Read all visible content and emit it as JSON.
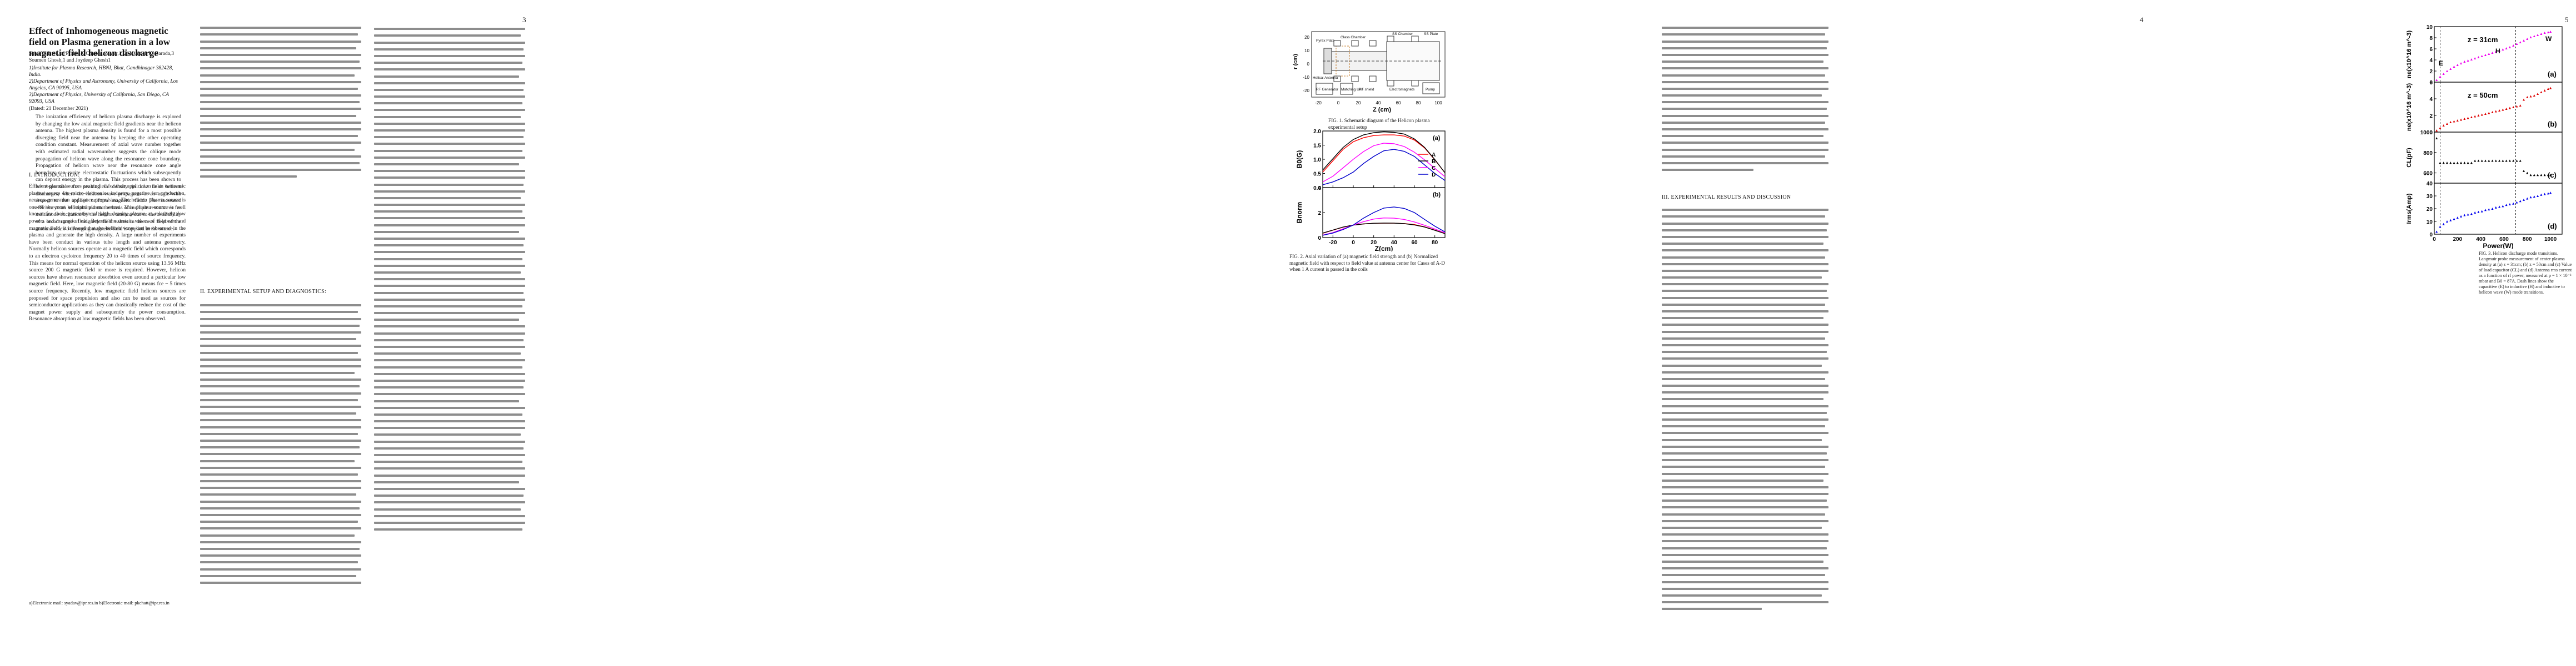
{
  "arxiv_id": "arXiv:1901.03015v1  [physics.plasm-ph]  10 Jan 2019",
  "pages": {
    "p1": {
      "title": "Effect of Inhomogeneous magnetic field on Plasma generation in a low magnetic field helicon discharge",
      "authors": "Sonu Yadav,1, a) Pralay K Chattopadhyay,1, 2) Kshitish K. Barada,3 Soumen Ghosh,1 and Joydeep Ghosh1",
      "aff1": "1)Institute for Plasma Research, HBNI, Bhat, Gandhinagar 382428, India.",
      "aff2": "2)Department of Physics and Astronomy, University of California, Los Angeles, CA 90095, USA",
      "aff3": "3)Department of Physics, University of California, San Diego, CA 92093, USA",
      "dated": "(Dated: 21 December 2021)",
      "abstract": "The ionization efficiency of helicon plasma discharge is explored by changing the low axial magnetic field gradients near the helicon antenna. The highest plasma density is found for a most possible diverging field near the antenna by keeping the other operating condition constant. Measurement of axial wave number together with estimated radial wavenumber suggests the oblique mode propagation of helicon wave along the resonance cone boundary. Propagation of helicon wave near the resonance cone angle boundary can excite electrostatic fluctuations which subsequently can deposit energy in the plasma. This process has been shown to be responsible for peaking in density in low field helicon discharges, where the helicon wave propagates at an angle with respect to the applied uniform magnetic field. The increased efficiency can be explained on the basis of multiple resonances for multimode excitation by the helicon antenna due to the availability of a broad range of magnetic field values in the near field of the antenna when a diverging magnetic field is applied in the source.",
      "section": "I.   INTRODUCTION:",
      "intro": "Efficient plasma sources are studied for their application as an economic plasma source for micro-electronics industry, negative ion production, neutron generation and space propulsion. The helicon plasma source is one of the most efficient plasma source. This plasma source is well known for their generation of high density plasma at relatively low powers and magnetic field. Beyond the certain values of rf power and magnetic field, it is found that the helicon wave can be observed in the plasma and generate the high density. A large number of experiments have been conduct in various tube length and antenna geometry. Normally helicon sources operate at a magnetic field which corresponds to an electron cyclotron frequency 20 to 40 times of source frequency. This means for normal operation of the helicon source using 13.56 MHz source 200 G magnetic field or more is required. However, helicon sources have shown resonance absorbtion even around a particular low magnetic field. Here, low magnetic field (20-80 G) means fce ~ 5 times source frequency. Recently, low magnetic field helicon sources are proposed for space propulsion and also can be used as sources for semiconductor applications as they can drastically reduce the cost of the magnet power supply and subsequently the power consumption. Resonance absorption at low magnetic fields has been observed.",
      "footnotes": "a)Electronic mail: syadav@ipr.res.in   b)Electronic mail: pkchatt@ipr.res.in"
    },
    "p2": {
      "page_number": "2",
      "section": "II.   EXPERIMENTAL SETUP AND DIAGNOSTICS:"
    },
    "p3": {
      "page_number": "3",
      "fig1_caption": "FIG. 1. Schematic diagram of the Helicon plasma experimental setup",
      "fig2_caption": "FIG. 2. Axial variation of (a) magnetic field strength and (b) Normalized magnetic field with respect to field value at antenna center for Cases of A-D when 1 A current is passed in the coils"
    },
    "p4": {
      "page_number": "4",
      "section": "III.   EXPERIMENTAL RESULTS AND DISCUSSION"
    },
    "p5": {
      "page_number": "5",
      "fig3_caption": "FIG. 3. Helicon discharge mode transitions. Langmuir probe measurement of center plasma density at (a) z = 31cm; (b) z = 50cm and (c) Value of load capacitor (CL) and (d) Antenna rms current as a function of rf power, measured at p = 1 × 10⁻³ mbar and B0 = 87A. Dash lines show the capacitive (E) to inductive (H) and inductive to helicon wave (W) mode transitions."
    }
  },
  "schematic": {
    "labels": {
      "pyrex": "Pyrex Plate",
      "gas": "Glass Chamber",
      "ss_chamber": "SS Chamber",
      "ss_plate": "SS Plate",
      "helical": "Helical Antenna",
      "rf_gen": "RF Generator",
      "matching": "Matching Unit",
      "rf_shield": "RF shield",
      "magnets": "Electromagnets",
      "pump": "Pump",
      "ylabel": "r (cm)",
      "xlabel": "Z (cm)"
    },
    "xticks": [
      "-20",
      "0",
      "20",
      "40",
      "60",
      "80",
      "100"
    ],
    "yticks": [
      "20",
      "10",
      "0",
      "-10",
      "-20"
    ]
  },
  "chart_data": [
    {
      "type": "line",
      "panel": "(a)",
      "ylabel": "B0(G)",
      "xlabel": "Z(cm)",
      "xlim": [
        -30,
        90
      ],
      "ylim": [
        0.0,
        2.0
      ],
      "yticks": [
        "0.0",
        "0.5",
        "1.0",
        "1.5",
        "2.0"
      ],
      "xticks": [
        "-20",
        "0",
        "20",
        "40",
        "60",
        "80"
      ],
      "series": [
        {
          "name": "A",
          "color": "#ff0000",
          "x": [
            -30,
            -20,
            -10,
            0,
            10,
            20,
            30,
            40,
            50,
            60,
            70,
            80,
            90
          ],
          "y": [
            0.55,
            0.95,
            1.35,
            1.62,
            1.76,
            1.84,
            1.86,
            1.86,
            1.82,
            1.68,
            1.4,
            0.98,
            0.52
          ]
        },
        {
          "name": "B",
          "color": "#000000",
          "x": [
            -30,
            -20,
            -10,
            0,
            10,
            20,
            30,
            40,
            50,
            60,
            70,
            80,
            90
          ],
          "y": [
            0.62,
            1.02,
            1.42,
            1.7,
            1.86,
            1.94,
            1.97,
            1.95,
            1.89,
            1.72,
            1.42,
            0.99,
            0.52
          ]
        },
        {
          "name": "C",
          "color": "#ff00ff",
          "x": [
            -30,
            -20,
            -10,
            0,
            10,
            20,
            30,
            40,
            50,
            60,
            70,
            80,
            90
          ],
          "y": [
            0.2,
            0.4,
            0.7,
            1.0,
            1.27,
            1.48,
            1.57,
            1.55,
            1.45,
            1.25,
            0.98,
            0.68,
            0.38
          ]
        },
        {
          "name": "D",
          "color": "#0000cc",
          "x": [
            -30,
            -20,
            -10,
            0,
            10,
            20,
            30,
            40,
            50,
            60,
            70,
            80,
            90
          ],
          "y": [
            0.1,
            0.2,
            0.35,
            0.55,
            0.85,
            1.1,
            1.3,
            1.35,
            1.28,
            1.1,
            0.8,
            0.5,
            0.25
          ]
        }
      ]
    },
    {
      "type": "line",
      "panel": "(b)",
      "ylabel": "Bnorm",
      "xlabel": "Z(cm)",
      "xlim": [
        -30,
        90
      ],
      "ylim": [
        0,
        4
      ],
      "yticks": [
        "0",
        "2",
        "4"
      ],
      "xticks": [
        "-20",
        "0",
        "20",
        "40",
        "60",
        "80"
      ],
      "series": [
        {
          "name": "A",
          "color": "#ff0000",
          "x": [
            -30,
            -20,
            -10,
            0,
            10,
            20,
            30,
            40,
            50,
            60,
            70,
            80,
            90
          ],
          "y": [
            0.34,
            0.59,
            0.83,
            1.0,
            1.09,
            1.14,
            1.15,
            1.15,
            1.12,
            1.04,
            0.86,
            0.6,
            0.32
          ]
        },
        {
          "name": "B",
          "color": "#000000",
          "x": [
            -30,
            -20,
            -10,
            0,
            10,
            20,
            30,
            40,
            50,
            60,
            70,
            80,
            90
          ],
          "y": [
            0.36,
            0.6,
            0.84,
            1.0,
            1.09,
            1.14,
            1.16,
            1.15,
            1.11,
            1.01,
            0.84,
            0.58,
            0.31
          ]
        },
        {
          "name": "C",
          "color": "#ff00ff",
          "x": [
            -30,
            -20,
            -10,
            0,
            10,
            20,
            30,
            40,
            50,
            60,
            70,
            80,
            90
          ],
          "y": [
            0.2,
            0.4,
            0.7,
            1.0,
            1.27,
            1.48,
            1.57,
            1.55,
            1.45,
            1.25,
            0.98,
            0.68,
            0.38
          ]
        },
        {
          "name": "D",
          "color": "#0000cc",
          "x": [
            -30,
            -20,
            -10,
            0,
            10,
            20,
            30,
            40,
            50,
            60,
            70,
            80,
            90
          ],
          "y": [
            0.18,
            0.36,
            0.64,
            1.0,
            1.55,
            2.0,
            2.36,
            2.45,
            2.33,
            2.0,
            1.45,
            0.91,
            0.45
          ]
        }
      ]
    },
    {
      "type": "scatter",
      "panel": "(a)",
      "annotation": "z = 31cm",
      "mode_labels": [
        "E",
        "H",
        "W"
      ],
      "ylabel": "ne(x10^16 m^-3)",
      "xlim": [
        0,
        1100
      ],
      "ylim": [
        0,
        10
      ],
      "yticks": [
        "0",
        "2",
        "4",
        "6",
        "8",
        "10"
      ],
      "color": "#ee00ee",
      "x": [
        20,
        50,
        80,
        110,
        140,
        170,
        200,
        230,
        260,
        290,
        320,
        350,
        380,
        410,
        440,
        470,
        500,
        530,
        560,
        590,
        620,
        650,
        680,
        710,
        740,
        770,
        800,
        830,
        860,
        890,
        920,
        950,
        980,
        1000
      ],
      "y": [
        0.4,
        1.0,
        1.5,
        2.0,
        2.4,
        2.8,
        3.1,
        3.4,
        3.7,
        3.9,
        4.1,
        4.3,
        4.5,
        4.7,
        4.9,
        5.1,
        5.3,
        5.5,
        5.7,
        5.9,
        6.1,
        6.3,
        6.6,
        6.9,
        7.2,
        7.5,
        7.8,
        8.1,
        8.3,
        8.5,
        8.7,
        8.9,
        9.0,
        9.1
      ]
    },
    {
      "type": "scatter",
      "panel": "(b)",
      "annotation": "z = 50cm",
      "ylabel": "ne(x10^16 m^-3)",
      "xlim": [
        0,
        1100
      ],
      "ylim": [
        0,
        6
      ],
      "yticks": [
        "0",
        "2",
        "4",
        "6"
      ],
      "color": "#dd0000",
      "x": [
        20,
        50,
        80,
        110,
        140,
        170,
        200,
        230,
        260,
        290,
        320,
        350,
        380,
        410,
        440,
        470,
        500,
        530,
        560,
        590,
        620,
        650,
        680,
        710,
        740,
        770,
        800,
        830,
        860,
        890,
        920,
        950,
        980,
        1000
      ],
      "y": [
        0.2,
        0.5,
        0.8,
        1.0,
        1.2,
        1.3,
        1.4,
        1.5,
        1.6,
        1.7,
        1.8,
        1.9,
        2.0,
        2.1,
        2.2,
        2.3,
        2.4,
        2.5,
        2.6,
        2.7,
        2.8,
        2.9,
        3.0,
        3.1,
        3.2,
        3.9,
        4.2,
        4.3,
        4.4,
        4.6,
        4.8,
        5.0,
        5.2,
        5.3
      ]
    },
    {
      "type": "scatter",
      "panel": "(c)",
      "ylabel": "CL(pF)",
      "xlim": [
        0,
        1100
      ],
      "ylim": [
        500,
        1000
      ],
      "yticks": [
        "600",
        "800",
        "1000"
      ],
      "color": "#000000",
      "x": [
        20,
        50,
        80,
        110,
        140,
        170,
        200,
        230,
        260,
        290,
        320,
        350,
        380,
        410,
        440,
        470,
        500,
        530,
        560,
        590,
        620,
        650,
        680,
        710,
        740,
        770,
        800,
        830,
        860,
        890,
        920,
        950,
        980,
        1000
      ],
      "y": [
        940,
        700,
        700,
        700,
        700,
        700,
        700,
        700,
        700,
        700,
        700,
        720,
        720,
        720,
        720,
        720,
        720,
        720,
        720,
        720,
        720,
        720,
        720,
        720,
        720,
        620,
        600,
        580,
        580,
        580,
        580,
        580,
        580,
        580
      ]
    },
    {
      "type": "scatter",
      "panel": "(d)",
      "ylabel": "Irms(Amp)",
      "xlabel": "Power(W)",
      "xlim": [
        0,
        1100
      ],
      "ylim": [
        0,
        40
      ],
      "yticks": [
        "0",
        "10",
        "20",
        "30",
        "40"
      ],
      "xticks": [
        "0",
        "200",
        "400",
        "600",
        "800",
        "1000"
      ],
      "color": "#0000ee",
      "x": [
        20,
        50,
        80,
        110,
        140,
        170,
        200,
        230,
        260,
        290,
        320,
        350,
        380,
        410,
        440,
        470,
        500,
        530,
        560,
        590,
        620,
        650,
        680,
        710,
        740,
        770,
        800,
        830,
        860,
        890,
        920,
        950,
        980,
        1000
      ],
      "y": [
        2,
        6,
        8,
        10,
        11,
        12,
        13,
        14,
        15,
        15.5,
        16,
        17,
        17.5,
        18,
        19,
        19.5,
        20,
        21,
        21.5,
        22,
        23,
        23.5,
        24,
        25,
        26,
        27,
        28,
        29,
        29.5,
        30,
        31,
        31.5,
        32,
        32.5
      ]
    }
  ],
  "transitions_power_w": [
    50,
    700
  ]
}
